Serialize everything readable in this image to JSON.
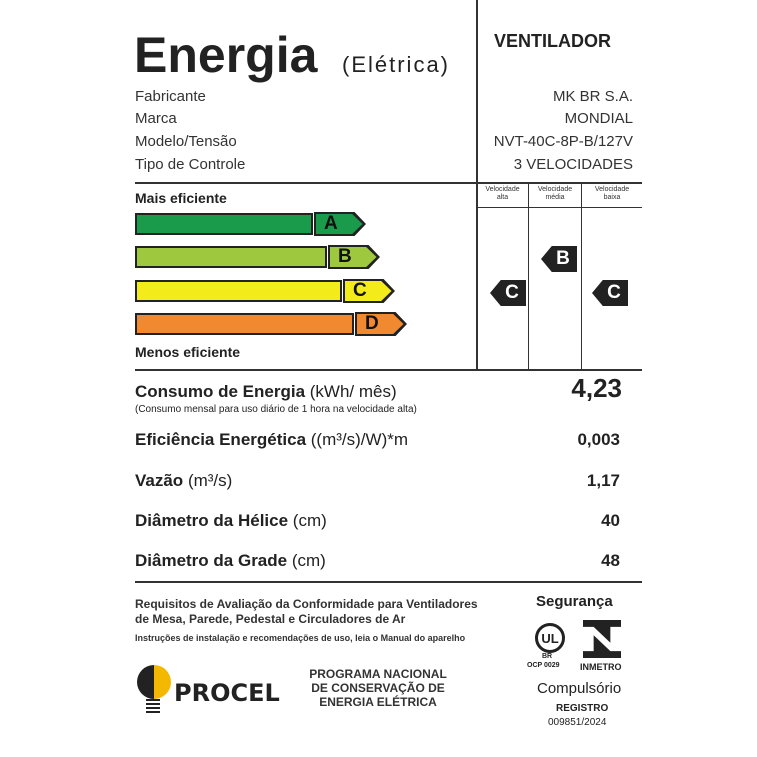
{
  "header": {
    "title": "Energia",
    "subtitle": "(Elétrica)",
    "product": "VENTILADOR"
  },
  "info": [
    {
      "label": "Fabricante",
      "value": "MK BR S.A."
    },
    {
      "label": "Marca",
      "value": "MONDIAL"
    },
    {
      "label": "Modelo/Tensão",
      "value": "NVT-40C-8P-B/127V"
    },
    {
      "label": "Tipo de Controle",
      "value": "3 VELOCIDADES"
    }
  ],
  "scale": {
    "top_label": "Mais eficiente",
    "bottom_label": "Menos eficiente",
    "classes": [
      {
        "letter": "A",
        "color": "#1a9a4b"
      },
      {
        "letter": "B",
        "color": "#9ec93f"
      },
      {
        "letter": "C",
        "color": "#f4ec1a"
      },
      {
        "letter": "D",
        "color": "#f0892f"
      }
    ]
  },
  "speeds": [
    {
      "label1": "Velocidade",
      "label2": "alta",
      "rating": "C"
    },
    {
      "label1": "Velocidade",
      "label2": "média",
      "rating": "B"
    },
    {
      "label1": "Velocidade",
      "label2": "baixa",
      "rating": "C"
    }
  ],
  "metrics": {
    "consumo": {
      "label": "Consumo de Energia",
      "unit": "(kWh/ mês)",
      "note": "(Consumo mensal para uso diário de 1 hora na velocidade alta)",
      "value": "4,23"
    },
    "eficiencia": {
      "label": "Eficiência Energética",
      "unit": "((m³/s)/W)*m",
      "value": "0,003"
    },
    "vazao": {
      "label": "Vazão",
      "unit": "(m³/s)",
      "value": "1,17"
    },
    "helice": {
      "label": "Diâmetro da Hélice",
      "unit": "(cm)",
      "value": "40"
    },
    "grade": {
      "label": "Diâmetro da Grade",
      "unit": "(cm)",
      "value": "48"
    }
  },
  "footer": {
    "req1": "Requisitos de Avaliação da Conformidade para Ventiladores",
    "req2": "de Mesa, Parede, Pedestal e Circuladores de Ar",
    "instr": "Instruções de instalação e recomendações de uso, leia o Manual do aparelho",
    "procel": "PROCEL",
    "prog1": "PROGRAMA NACIONAL",
    "prog2": "DE CONSERVAÇÃO DE",
    "prog3": "ENERGIA ELÉTRICA",
    "seguranca": "Segurança",
    "ul_br": "BR",
    "ocp": "OCP 0029",
    "inmetro": "INMETRO",
    "compulsorio": "Compulsório",
    "registro": "REGISTRO",
    "registro_num": "009851/2024"
  }
}
